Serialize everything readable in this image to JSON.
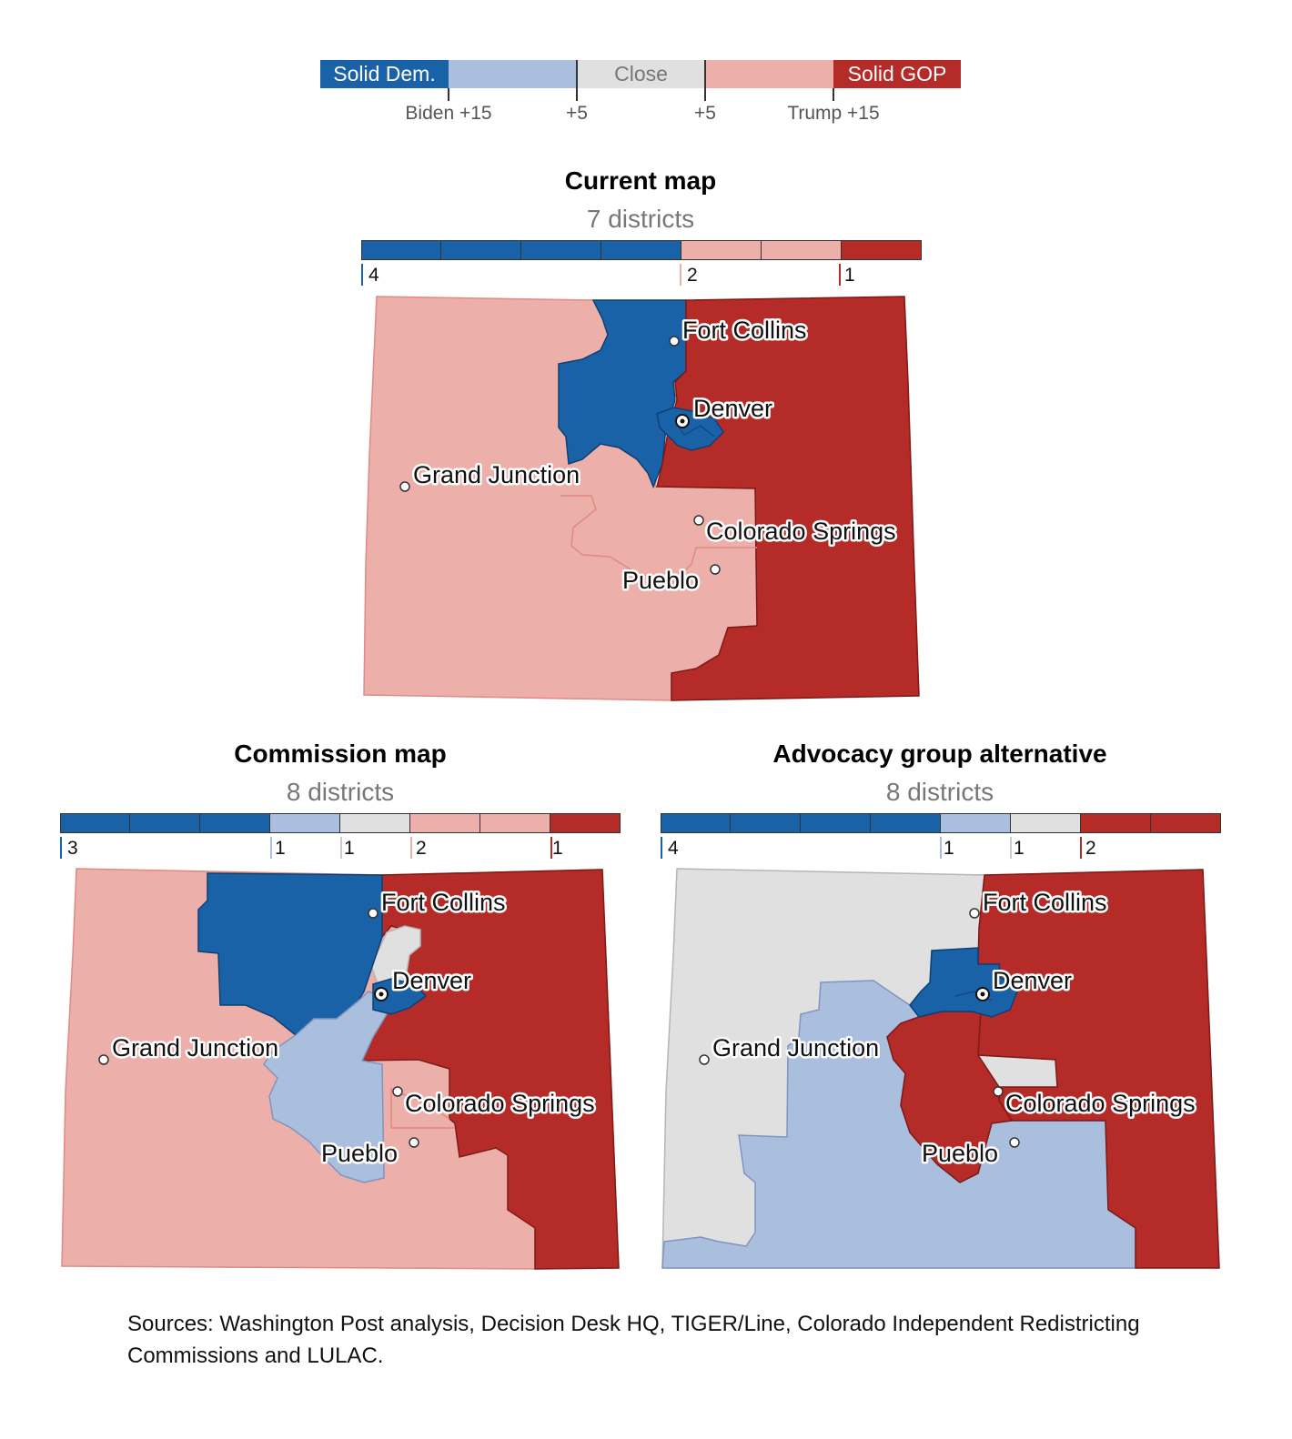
{
  "colors": {
    "solid_dem": "#1a62a8",
    "lean_dem": "#aabfde",
    "close": "#e0e0e0",
    "lean_gop": "#edafa9",
    "solid_gop": "#b52b27"
  },
  "legend": {
    "categories": [
      "Solid Dem.",
      "",
      "Close",
      "",
      "Solid GOP"
    ],
    "ticks": [
      "Biden +15",
      "+5",
      "+5",
      "Trump +15"
    ]
  },
  "panels": [
    {
      "title": "Current map",
      "subtitle": "7 districts",
      "counts": [
        {
          "category": "solid_dem",
          "count": 4,
          "label": "4"
        },
        {
          "category": "lean_gop",
          "count": 2,
          "label": "2"
        },
        {
          "category": "solid_gop",
          "count": 1,
          "label": "1"
        }
      ],
      "cities": [
        "Fort Collins",
        "Denver",
        "Grand Junction",
        "Colorado Springs",
        "Pueblo"
      ]
    },
    {
      "title": "Commission map",
      "subtitle": "8 districts",
      "counts": [
        {
          "category": "solid_dem",
          "count": 3,
          "label": "3"
        },
        {
          "category": "lean_dem",
          "count": 1,
          "label": "1"
        },
        {
          "category": "close",
          "count": 1,
          "label": "1"
        },
        {
          "category": "lean_gop",
          "count": 2,
          "label": "2"
        },
        {
          "category": "solid_gop",
          "count": 1,
          "label": "1"
        }
      ],
      "cities": [
        "Fort Collins",
        "Denver",
        "Grand Junction",
        "Colorado Springs",
        "Pueblo"
      ]
    },
    {
      "title": "Advocacy group alternative",
      "subtitle": "8 districts",
      "counts": [
        {
          "category": "solid_dem",
          "count": 4,
          "label": "4"
        },
        {
          "category": "lean_dem",
          "count": 1,
          "label": "1"
        },
        {
          "category": "close",
          "count": 1,
          "label": "1"
        },
        {
          "category": "solid_gop",
          "count": 2,
          "label": "2"
        }
      ],
      "cities": [
        "Fort Collins",
        "Denver",
        "Grand Junction",
        "Colorado Springs",
        "Pueblo"
      ]
    }
  ],
  "sources": "Sources: Washington Post analysis, Decision Desk HQ, TIGER/Line, Colorado Independent Redistricting Commissions and LULAC."
}
